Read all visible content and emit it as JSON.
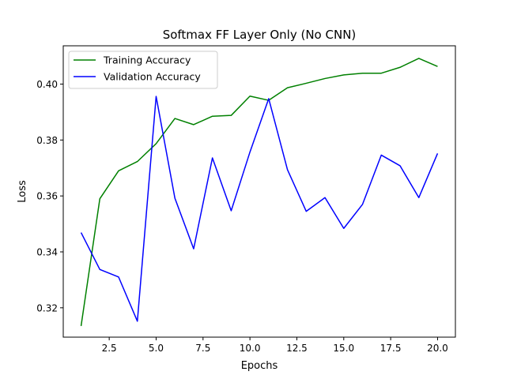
{
  "chart_data": {
    "type": "line",
    "title": "Softmax FF Layer Only (No CNN)",
    "xlabel": "Epochs",
    "ylabel": "Loss",
    "xlim": [
      0.05,
      20.95
    ],
    "ylim": [
      0.3095,
      0.4137
    ],
    "xticks": [
      2.5,
      5.0,
      7.5,
      10.0,
      12.5,
      15.0,
      17.5,
      20.0
    ],
    "xtick_labels": [
      "2.5",
      "5.0",
      "7.5",
      "10.0",
      "12.5",
      "15.0",
      "17.5",
      "20.0"
    ],
    "yticks": [
      0.32,
      0.34,
      0.36,
      0.38,
      0.4
    ],
    "ytick_labels": [
      "0.32",
      "0.34",
      "0.36",
      "0.38",
      "0.40"
    ],
    "grid": false,
    "legend_position": "upper-left",
    "x": [
      1,
      2,
      3,
      4,
      5,
      6,
      7,
      8,
      9,
      10,
      11,
      12,
      13,
      14,
      15,
      16,
      17,
      18,
      19,
      20
    ],
    "series": [
      {
        "name": "Training Accuracy",
        "color": "#008000",
        "values": [
          0.3135,
          0.359,
          0.369,
          0.3723,
          0.3787,
          0.3877,
          0.3855,
          0.3885,
          0.3888,
          0.3957,
          0.3942,
          0.3987,
          0.4003,
          0.402,
          0.4033,
          0.4039,
          0.4039,
          0.406,
          0.4092,
          0.4063
        ]
      },
      {
        "name": "Validation Accuracy",
        "color": "#0000ff",
        "values": [
          0.3469,
          0.3337,
          0.331,
          0.3152,
          0.3956,
          0.3592,
          0.3411,
          0.3736,
          0.3547,
          0.3757,
          0.3948,
          0.3694,
          0.3545,
          0.3594,
          0.3484,
          0.357,
          0.3746,
          0.3708,
          0.3594,
          0.3752
        ]
      }
    ]
  }
}
